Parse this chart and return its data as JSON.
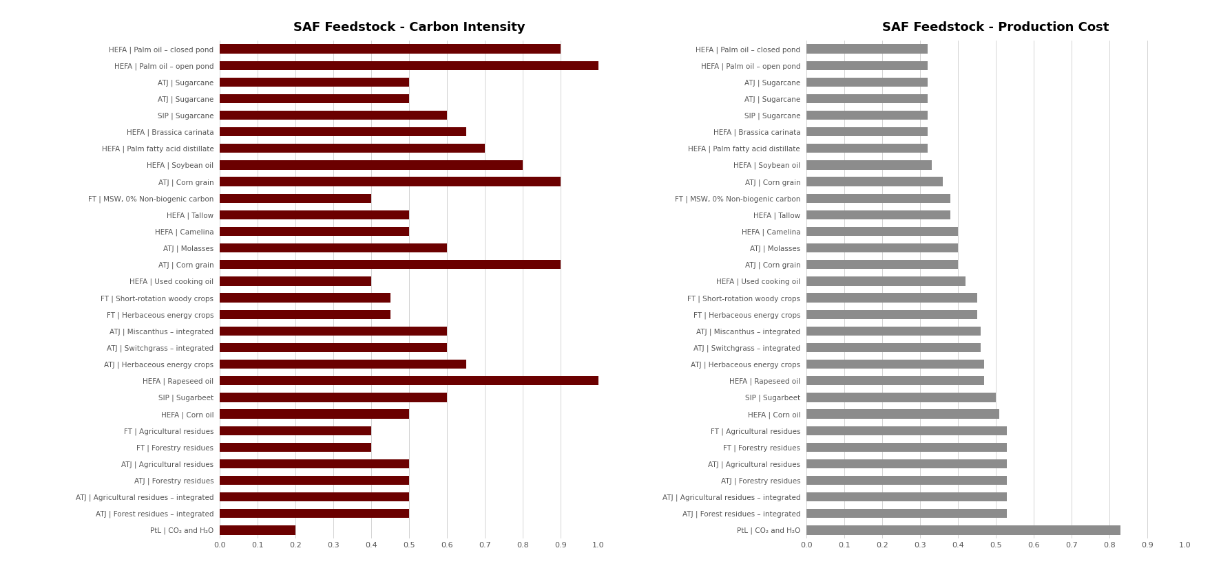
{
  "title_left": "SAF Feedstock - Carbon Intensity",
  "title_right": "SAF Feedstock - Production Cost",
  "labels": [
    "HEFA | Palm oil – closed pond",
    "HEFA | Palm oil – open pond",
    "ATJ | Sugarcane",
    "ATJ | Sugarcane",
    "SIP | Sugarcane",
    "HEFA | Brassica carinata",
    "HEFA | Palm fatty acid distillate",
    "HEFA | Soybean oil",
    "ATJ | Corn grain",
    "FT | MSW, 0% Non-biogenic carbon",
    "HEFA | Tallow",
    "HEFA | Camelina",
    "ATJ | Molasses",
    "ATJ | Corn grain",
    "HEFA | Used cooking oil",
    "FT | Short-rotation woody crops",
    "FT | Herbaceous energy crops",
    "ATJ | Miscanthus – integrated",
    "ATJ | Switchgrass – integrated",
    "ATJ | Herbaceous energy crops",
    "HEFA | Rapeseed oil",
    "SIP | Sugarbeet",
    "HEFA | Corn oil",
    "FT | Agricultural residues",
    "FT | Forestry residues",
    "ATJ | Agricultural residues",
    "ATJ | Forestry residues",
    "ATJ | Agricultural residues – integrated",
    "ATJ | Forest residues – integrated",
    "PtL | CO₂ and H₂O"
  ],
  "ci_values": [
    0.9,
    1.0,
    0.5,
    0.5,
    0.6,
    0.65,
    0.7,
    0.8,
    0.9,
    0.4,
    0.5,
    0.5,
    0.6,
    0.9,
    0.4,
    0.45,
    0.45,
    0.6,
    0.6,
    0.65,
    1.0,
    0.6,
    0.5,
    0.4,
    0.4,
    0.5,
    0.5,
    0.5,
    0.5,
    0.2
  ],
  "pc_values": [
    0.32,
    0.32,
    0.32,
    0.32,
    0.32,
    0.32,
    0.32,
    0.33,
    0.36,
    0.38,
    0.38,
    0.4,
    0.4,
    0.4,
    0.42,
    0.45,
    0.45,
    0.46,
    0.46,
    0.47,
    0.47,
    0.5,
    0.51,
    0.53,
    0.53,
    0.53,
    0.53,
    0.53,
    0.53,
    0.83
  ],
  "ci_color": "#6B0000",
  "pc_color": "#8C8C8C",
  "bg_color": "#FFFFFF",
  "title_fontsize": 13,
  "label_fontsize": 7.5,
  "tick_fontsize": 8,
  "bar_height": 0.55,
  "xlim_ci": [
    0.0,
    1.0
  ],
  "xlim_pc": [
    0.0,
    1.0
  ],
  "xticks": [
    0.0,
    0.1,
    0.2,
    0.3,
    0.4,
    0.5,
    0.6,
    0.7,
    0.8,
    0.9,
    1.0
  ]
}
